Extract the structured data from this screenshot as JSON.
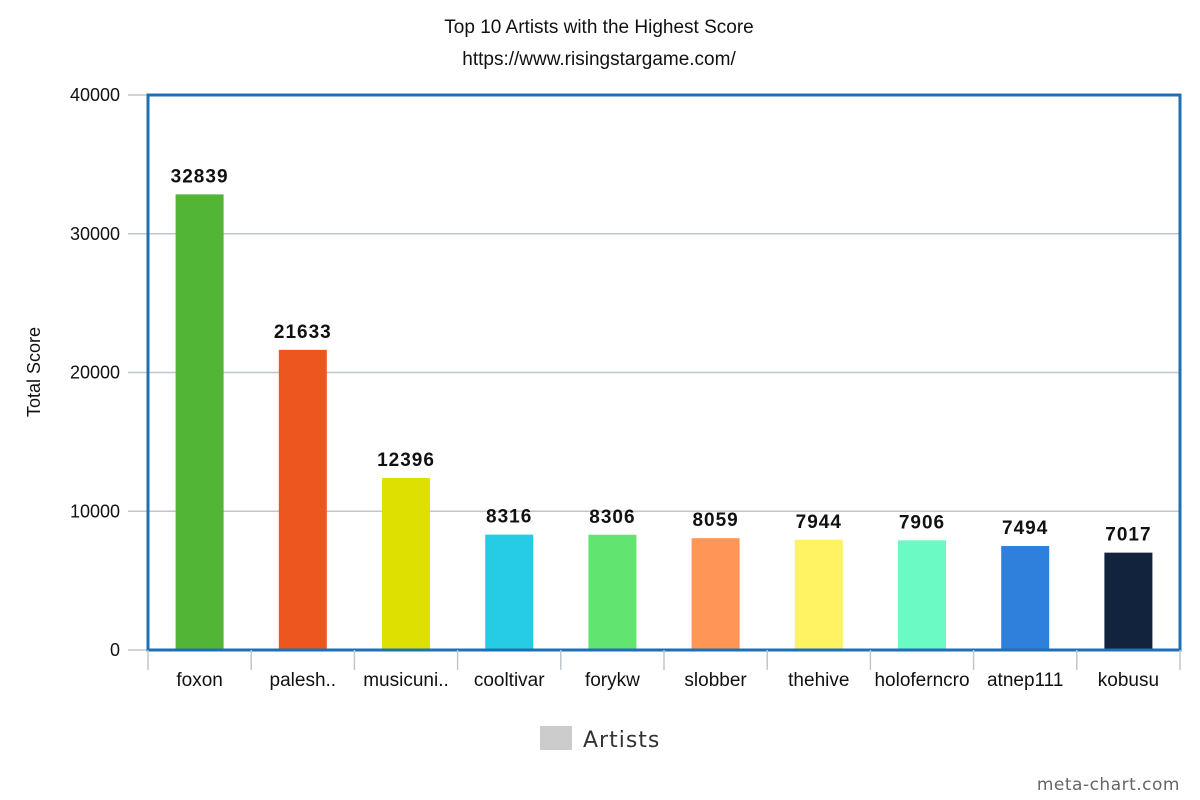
{
  "chart_data": {
    "type": "bar",
    "title": "Top 10 Artists with the Highest Score",
    "subtitle": "https://www.risingstargame.com/",
    "xlabel": "",
    "ylabel": "Total Score",
    "ylim": [
      0,
      40000
    ],
    "yticks": [
      0,
      10000,
      20000,
      30000,
      40000
    ],
    "categories": [
      "foxon",
      "palesh..",
      "musicuni..",
      "cooltivar",
      "forykw",
      "slobber",
      "thehive",
      "holoferncro",
      "atnep111",
      "kobusu"
    ],
    "series": [
      {
        "name": "Artists",
        "values": [
          32839,
          21633,
          12396,
          8316,
          8306,
          8059,
          7944,
          7906,
          7494,
          7017
        ],
        "colors": [
          "#52b535",
          "#ed561e",
          "#dde000",
          "#26cbe4",
          "#62e471",
          "#ff9655",
          "#fff263",
          "#6bf9c4",
          "#2f80dc",
          "#11233d"
        ]
      }
    ],
    "data_labels": [
      "32839",
      "21633",
      "12396",
      "8316",
      "8306",
      "8059",
      "7944",
      "7906",
      "7494",
      "7017"
    ],
    "grid": true,
    "legend": {
      "position": "bottom-center",
      "entries": [
        {
          "label": "Artists",
          "color": "#cccccc"
        }
      ]
    },
    "frame_color": "#1f6fb5",
    "gridline_color": "#c0c6cc"
  },
  "footer": {
    "watermark": "meta-chart.com"
  }
}
